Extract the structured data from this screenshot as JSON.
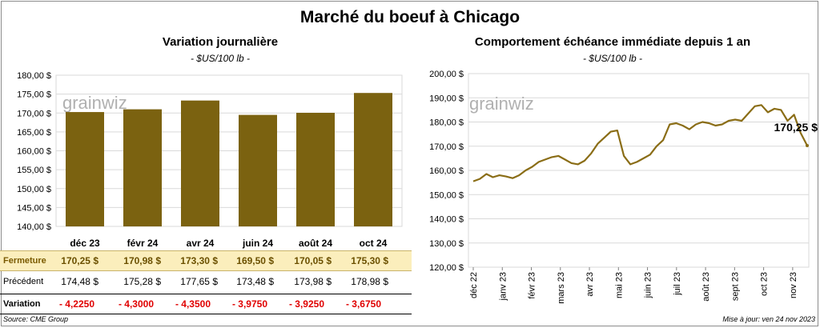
{
  "title": "Marché du boeuf à Chicago",
  "footer": {
    "source": "Source: CME Group",
    "updated": "Mise à jour: ven 24 nov 2023"
  },
  "watermark": "grainwiz",
  "colors": {
    "bar": "#7b6210",
    "line": "#8a6d16",
    "highlight_row": "#fbeebc",
    "negative": "#e00000"
  },
  "table": {
    "rows": [
      {
        "label": "Fermeture",
        "values": [
          "170,25  $",
          "170,98  $",
          "173,30  $",
          "169,50  $",
          "170,05  $",
          "175,30  $"
        ]
      },
      {
        "label": "Précédent",
        "values": [
          "174,48  $",
          "175,28  $",
          "177,65  $",
          "173,48  $",
          "173,98  $",
          "178,98  $"
        ]
      },
      {
        "label": "Variation",
        "values": [
          "- 4,2250",
          "- 4,3000",
          "- 4,3500",
          "- 3,9750",
          "- 3,9250",
          "- 3,6750"
        ]
      }
    ]
  },
  "chart_data": [
    {
      "type": "bar",
      "title": "Variation  journalière",
      "subtitle": "- $US/100 lb -",
      "categories": [
        "déc 23",
        "févr 24",
        "avr 24",
        "juin 24",
        "août 24",
        "oct 24"
      ],
      "values": [
        170.25,
        170.98,
        173.3,
        169.5,
        170.05,
        175.3
      ],
      "ylim": [
        140,
        180
      ],
      "yticks": [
        "140,00 $",
        "145,00 $",
        "150,00 $",
        "155,00 $",
        "160,00 $",
        "165,00 $",
        "170,00 $",
        "175,00 $",
        "180,00 $"
      ],
      "grid": true
    },
    {
      "type": "line",
      "title": "Comportement  échéance immédiate depuis 1 an",
      "subtitle": "- $US/100 lb -",
      "ylim": [
        120,
        200
      ],
      "yticks": [
        "120,00 $",
        "130,00 $",
        "140,00 $",
        "150,00 $",
        "160,00 $",
        "170,00 $",
        "180,00 $",
        "190,00 $",
        "200,00 $"
      ],
      "xticks": [
        "déc 22",
        "janv 23",
        "févr 23",
        "mars 23",
        "avr 23",
        "mai 23",
        "juin 23",
        "juil 23",
        "août 23",
        "sept 23",
        "oct 23",
        "nov 23"
      ],
      "last_label": "170,25 $",
      "grid": true,
      "series": [
        {
          "x": [
            0,
            1,
            2,
            3,
            4,
            5,
            6,
            7,
            8,
            9,
            10,
            11,
            12,
            13,
            14,
            15,
            16,
            17,
            18,
            19,
            20,
            21,
            22,
            23,
            24,
            25,
            26,
            27,
            28,
            29,
            30,
            31,
            32,
            33,
            34,
            35,
            36,
            37,
            38,
            39,
            40,
            41,
            42,
            43,
            44,
            45,
            46,
            47,
            48,
            49,
            50,
            51
          ],
          "values": [
            155.5,
            156.5,
            158.5,
            157.2,
            158.0,
            157.5,
            156.8,
            158.0,
            160.0,
            161.5,
            163.5,
            164.5,
            165.5,
            166.0,
            164.5,
            163.0,
            162.5,
            164.0,
            167.0,
            171.0,
            173.5,
            176.0,
            176.5,
            166.0,
            162.5,
            163.5,
            165.0,
            166.5,
            170.0,
            172.5,
            179.0,
            179.5,
            178.5,
            177.0,
            179.0,
            180.0,
            179.5,
            178.5,
            179.0,
            180.5,
            181.0,
            180.5,
            183.5,
            186.5,
            187.0,
            184.0,
            185.5,
            185.0,
            180.5,
            183.0,
            175.5,
            170.25
          ]
        }
      ]
    }
  ]
}
